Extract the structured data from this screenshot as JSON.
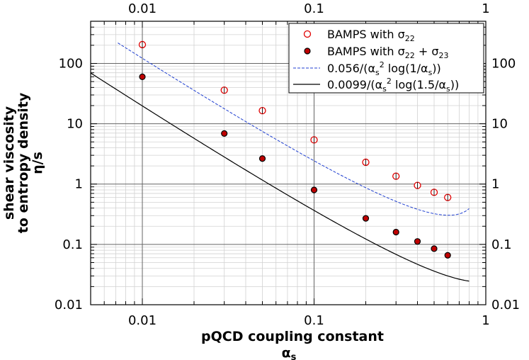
{
  "chart_data": {
    "type": "scatter",
    "title": "",
    "xlabel": "pQCD coupling constant",
    "xlabel_symbol": "α",
    "xlabel_symbol_sub": "s",
    "ylabel_lines": [
      "shear viscosity",
      "to entropy density",
      "η/s"
    ],
    "xscale": "log",
    "yscale": "log",
    "xlim": [
      0.005,
      1
    ],
    "ylim": [
      0.01,
      500
    ],
    "grid": true,
    "x_ticks": [
      0.01,
      0.1,
      1
    ],
    "x_tick_labels": [
      "0.01",
      "0.1",
      "1"
    ],
    "y_ticks": [
      0.01,
      0.1,
      1,
      10,
      100
    ],
    "y_tick_labels": [
      "0.01",
      "0.1",
      "1",
      "10",
      "100"
    ],
    "legend_position": "top-right",
    "series": [
      {
        "name": "BAMPS with σ22",
        "legend": {
          "prefix": "BAMPS with σ",
          "sub1": "22",
          "mid": "",
          "sub2": ""
        },
        "kind": "points",
        "marker": "open-circle",
        "color": "#e00000",
        "x": [
          0.01,
          0.03,
          0.05,
          0.1,
          0.2,
          0.3,
          0.4,
          0.5,
          0.6
        ],
        "y": [
          205,
          36,
          16.5,
          5.4,
          2.3,
          1.35,
          0.95,
          0.73,
          0.6
        ]
      },
      {
        "name": "BAMPS with σ22 + σ23",
        "legend": {
          "prefix": "BAMPS with σ",
          "sub1": "22",
          "mid": " + σ",
          "sub2": "23"
        },
        "kind": "points",
        "marker": "filled-circle",
        "color": "#000000",
        "fill": "#c00000",
        "x": [
          0.01,
          0.03,
          0.05,
          0.1,
          0.2,
          0.3,
          0.4,
          0.5,
          0.6
        ],
        "y": [
          60,
          6.9,
          2.65,
          0.8,
          0.27,
          0.16,
          0.112,
          0.085,
          0.066
        ]
      },
      {
        "name": "0.056/(αs² log(1/αs))",
        "legend": {
          "pre": "0.056/(α",
          "s1": "s",
          "sup": "2",
          "mid": " log(1/α",
          "s2": "s",
          "post": "))"
        },
        "kind": "line",
        "style": "dashed",
        "color": "#1f3fd0",
        "formula": {
          "coef": 0.056,
          "logNum": 1
        },
        "x_range": [
          0.0072,
          0.8
        ]
      },
      {
        "name": "0.0099/(αs² log(1.5/αs))",
        "legend": {
          "pre": "0.0099/(α",
          "s1": "s",
          "sup": "2",
          "mid": " log(1.5/α",
          "s2": "s",
          "post": "))"
        },
        "kind": "line",
        "style": "solid",
        "color": "#000000",
        "formula": {
          "coef": 0.0099,
          "logNum": 1.5
        },
        "x_range": [
          0.005,
          0.8
        ]
      }
    ]
  }
}
